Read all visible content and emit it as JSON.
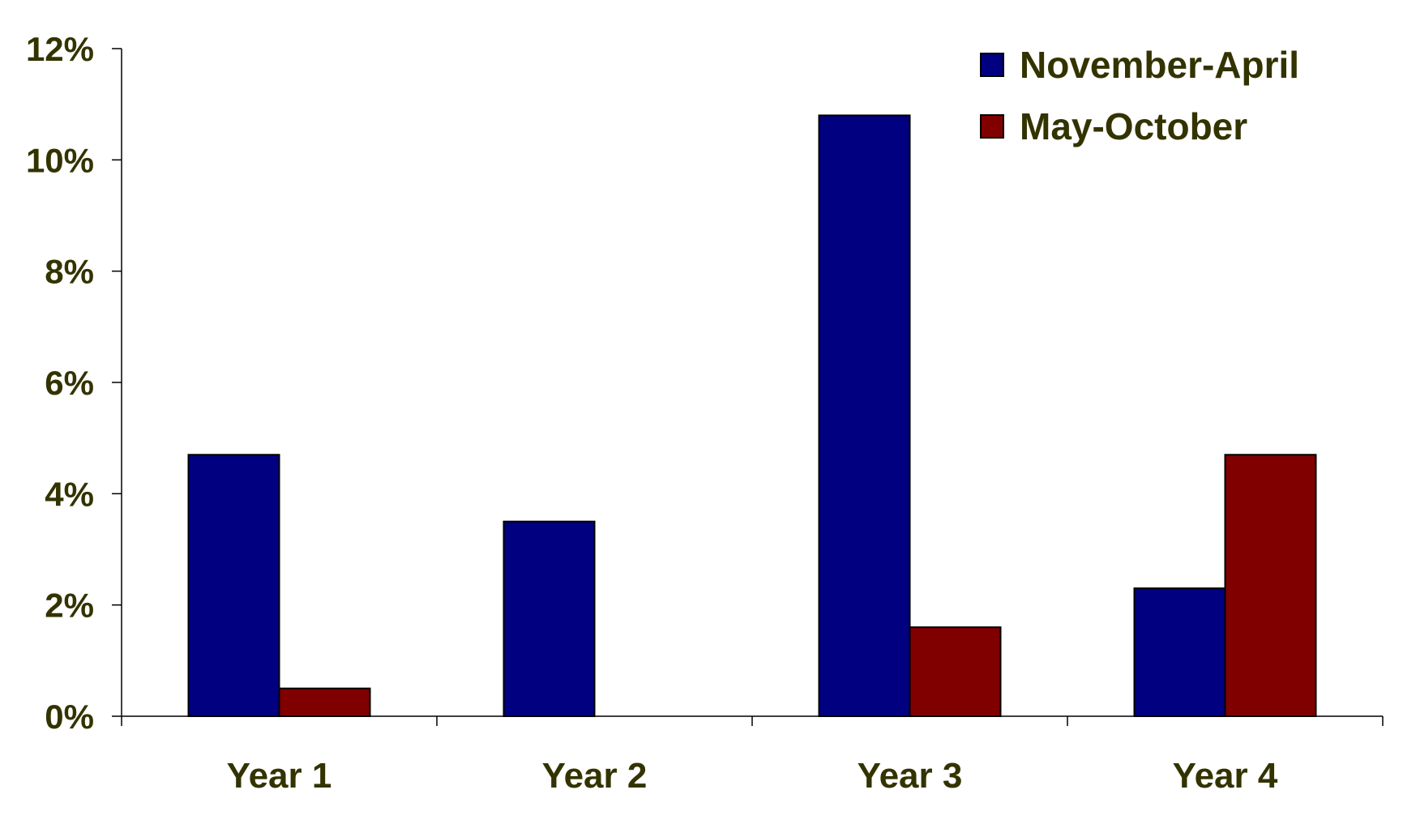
{
  "chart_data": {
    "type": "bar",
    "title": "",
    "xlabel": "",
    "ylabel": "",
    "categories": [
      "Year 1",
      "Year 2",
      "Year 3",
      "Year 4"
    ],
    "series": [
      {
        "name": "November-April",
        "color": "#000080",
        "values": [
          4.7,
          3.5,
          10.8,
          2.3
        ]
      },
      {
        "name": "May-October",
        "color": "#800000",
        "values": [
          0.5,
          0,
          1.6,
          4.7
        ]
      }
    ],
    "ylim": [
      0,
      12
    ],
    "y_ticks": [
      0,
      2,
      4,
      6,
      8,
      10,
      12
    ],
    "y_tick_labels": [
      "0%",
      "2%",
      "4%",
      "6%",
      "8%",
      "10%",
      "12%"
    ],
    "grid": false,
    "legend_position": "top-right",
    "text_color": "#333300"
  }
}
